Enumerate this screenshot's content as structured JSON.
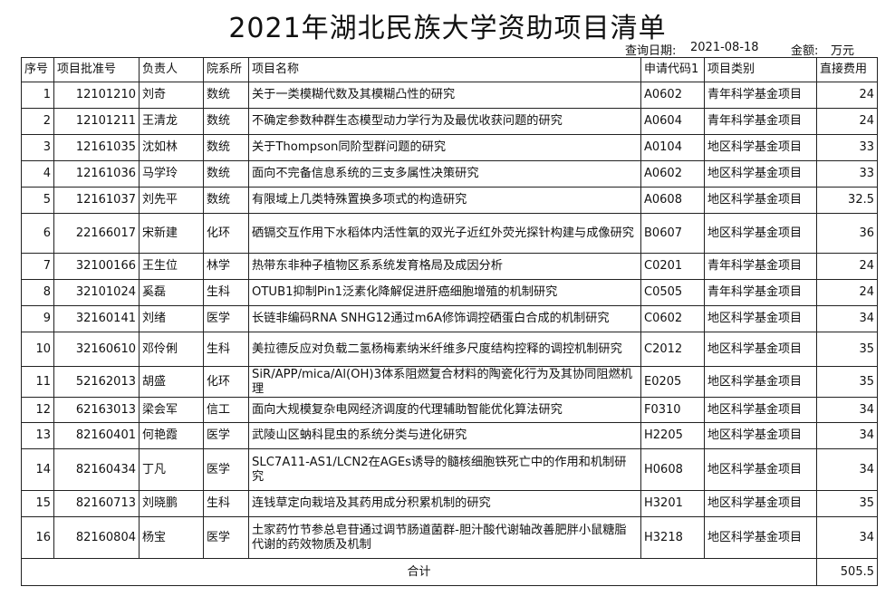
{
  "title": "2021年湖北民族大学资助项目清单",
  "query_date_label": "查询日期:",
  "query_date": "2021-08-18",
  "amount_label": "金额:",
  "amount_unit": "万元",
  "columns": [
    "序号",
    "项目批准号",
    "负责人",
    "院系所",
    "项目名称",
    "申请代码1",
    "项目类别",
    "直接费用"
  ],
  "rows": [
    [
      "1",
      "12101210",
      "刘奇",
      "数统",
      "关于一类模糊代数及其模糊凸性的研究",
      "A0602",
      "青年科学基金项目",
      "24"
    ],
    [
      "2",
      "12101211",
      "王清龙",
      "数统",
      "不确定参数种群生态模型动力学行为及最优收获问题的研究",
      "A0604",
      "青年科学基金项目",
      "24"
    ],
    [
      "3",
      "12161035",
      "沈如林",
      "数统",
      "关于Thompson同阶型群问题的研究",
      "A0104",
      "地区科学基金项目",
      "33"
    ],
    [
      "4",
      "12161036",
      "马学玲",
      "数统",
      "面向不完备信息系统的三支多属性决策研究",
      "A0602",
      "地区科学基金项目",
      "33"
    ],
    [
      "5",
      "12161037",
      "刘先平",
      "数统",
      "有限域上几类特殊置换多项式的构造研究",
      "A0608",
      "地区科学基金项目",
      "32.5"
    ],
    [
      "6",
      "22166017",
      "宋新建",
      "化环",
      "硒镉交互作用下水稻体内活性氧的双光子近红外荧光探针构建与成像研究",
      "B0607",
      "地区科学基金项目",
      "36"
    ],
    [
      "7",
      "32100166",
      "王生位",
      "林学",
      "热带东非种子植物区系系统发育格局及成因分析",
      "C0201",
      "青年科学基金项目",
      "24"
    ],
    [
      "8",
      "32101024",
      "奚磊",
      "生科",
      "OTUB1抑制Pin1泛素化降解促进肝癌细胞增殖的机制研究",
      "C0505",
      "青年科学基金项目",
      "24"
    ],
    [
      "9",
      "32160141",
      "刘绪",
      "医学",
      "长链非编码RNA SNHG12通过m6A修饰调控硒蛋白合成的机制研究",
      "C0602",
      "地区科学基金项目",
      "34"
    ],
    [
      "10",
      "32160610",
      "邓伶俐",
      "生科",
      "美拉德反应对负载二氢杨梅素纳米纤维多尺度结构控释的调控机制研究",
      "C2012",
      "地区科学基金项目",
      "35"
    ],
    [
      "11",
      "52162013",
      "胡盛",
      "化环",
      "SiR/APP/mica/Al(OH)3体系阻燃复合材料的陶瓷化行为及其协同阻燃机理",
      "E0205",
      "地区科学基金项目",
      "35"
    ],
    [
      "12",
      "62163013",
      "梁会军",
      "信工",
      "面向大规模复杂电网经济调度的代理辅助智能优化算法研究",
      "F0310",
      "地区科学基金项目",
      "34"
    ],
    [
      "13",
      "82160401",
      "何艳霞",
      "医学",
      "武陵山区蚋科昆虫的系统分类与进化研究",
      "H2205",
      "地区科学基金项目",
      "34"
    ],
    [
      "14",
      "82160434",
      "丁凡",
      "医学",
      "SLC7A11-AS1/LCN2在AGEs诱导的髓核细胞铁死亡中的作用和机制研究",
      "H0608",
      "地区科学基金项目",
      "34"
    ],
    [
      "15",
      "82160713",
      "刘晓鹏",
      "生科",
      "连钱草定向栽培及其药用成分积累机制的研究",
      "H3201",
      "地区科学基金项目",
      "35"
    ],
    [
      "16",
      "82160804",
      "杨宝",
      "医学",
      "土家药竹节参总皂苷通过调节肠道菌群-胆汁酸代谢轴改善肥胖小鼠糖脂代谢的药效物质及机制",
      "H3218",
      "地区科学基金项目",
      "34"
    ]
  ],
  "total_label": "合计",
  "total_value": "505.5"
}
